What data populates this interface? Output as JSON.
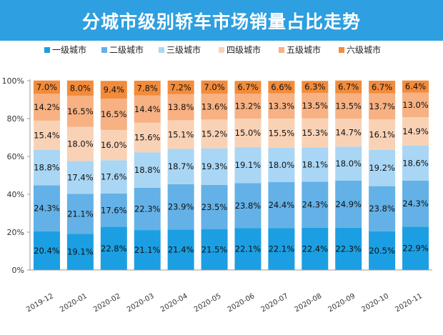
{
  "title": "分城市级别轿车市场销量占比走势",
  "colors": {
    "banner": "#2e9fe0",
    "axis": "#9a9a9a",
    "tick_text": "#333333",
    "label_text": "#111111"
  },
  "chart_data": {
    "type": "bar",
    "stacked": true,
    "normalized_percent": true,
    "categories": [
      "2019-12",
      "2020-01",
      "2020-02",
      "2020-03",
      "2020-04",
      "2020-05",
      "2020-06",
      "2020-07",
      "2020-08",
      "2020-09",
      "2020-10",
      "2020-11"
    ],
    "series": [
      {
        "name": "一级城市",
        "color": "#1b9fe2",
        "values": [
          20.4,
          19.1,
          22.8,
          21.1,
          21.4,
          21.5,
          22.1,
          22.1,
          22.4,
          22.3,
          20.5,
          22.9
        ],
        "labels": [
          "20.4%",
          "19.1%",
          "22.8%",
          "21.1%",
          "21.4%",
          "21.5%",
          "22.1%",
          "22.1%",
          "22.4%",
          "22.3%",
          "20.5%",
          "22.9%"
        ]
      },
      {
        "name": "二级城市",
        "color": "#63b1e6",
        "values": [
          24.3,
          21.1,
          17.6,
          22.3,
          23.9,
          23.5,
          23.8,
          24.4,
          24.3,
          24.9,
          23.8,
          24.3
        ],
        "labels": [
          "24.3%",
          "21.1%",
          "17.6%",
          "22.3%",
          "23.9%",
          "23.5%",
          "23.8%",
          "24.4%",
          "24.3%",
          "24.9%",
          "23.8%",
          "24.3%"
        ]
      },
      {
        "name": "三级城市",
        "color": "#a9d6f4",
        "values": [
          18.8,
          17.4,
          17.6,
          18.8,
          18.7,
          19.3,
          19.1,
          18.0,
          18.1,
          18.0,
          19.2,
          18.6
        ],
        "labels": [
          "18.8%",
          "17.4%",
          "17.6%",
          "18.8%",
          "18.7%",
          "19.3%",
          "19.1%",
          "18.0%",
          "18.1%",
          "18.0%",
          "19.2%",
          "18.6%"
        ]
      },
      {
        "name": "四级城市",
        "color": "#f9d2b6",
        "values": [
          15.4,
          18.0,
          16.0,
          15.6,
          15.1,
          15.2,
          15.0,
          15.5,
          15.3,
          14.7,
          16.1,
          14.9
        ],
        "labels": [
          "15.4%",
          "18.0%",
          "16.0%",
          "15.6%",
          "15.1%",
          "15.2%",
          "15.0%",
          "15.5%",
          "15.3%",
          "14.7%",
          "16.1%",
          "14.9%"
        ]
      },
      {
        "name": "五级城市",
        "color": "#f7b182",
        "values": [
          14.2,
          16.5,
          16.5,
          14.4,
          13.8,
          13.6,
          13.2,
          13.3,
          13.5,
          13.5,
          13.7,
          13.0
        ],
        "labels": [
          "14.2%",
          "16.5%",
          "16.5%",
          "14.4%",
          "13.8%",
          "13.6%",
          "13.2%",
          "13.3%",
          "13.5%",
          "13.5%",
          "13.7%",
          "13.0%"
        ]
      },
      {
        "name": "六级城市",
        "color": "#f28b3b",
        "values": [
          7.0,
          8.0,
          9.4,
          7.8,
          7.2,
          7.0,
          6.7,
          6.6,
          6.3,
          6.7,
          6.7,
          6.4
        ],
        "labels": [
          "7.0%",
          "8.0%",
          "9.4%",
          "7.8%",
          "7.2%",
          "7.0%",
          "6.7%",
          "6.6%",
          "6.3%",
          "6.7%",
          "6.7%",
          "6.4%"
        ]
      }
    ],
    "ylim": [
      0,
      100
    ],
    "yticks": [
      0,
      20,
      40,
      60,
      80,
      100
    ],
    "ytick_labels": [
      "0%",
      "20%",
      "40%",
      "60%",
      "80%",
      "100%"
    ],
    "grid": false,
    "legend_position": "top"
  }
}
